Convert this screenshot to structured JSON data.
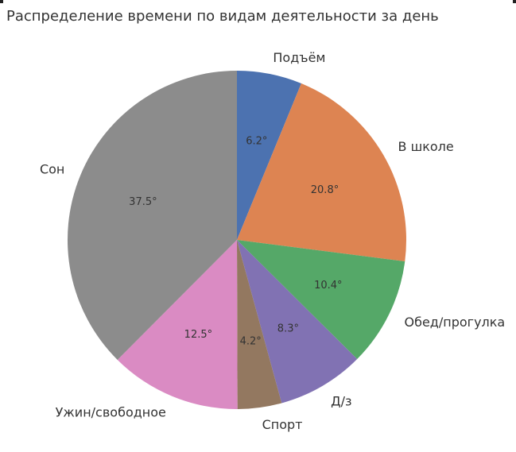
{
  "chart_data": {
    "type": "pie",
    "title": "Распределение времени по видам деятельности за день",
    "slices": [
      {
        "label": "Подъём",
        "value": 6.2,
        "value_label": "6.2°",
        "color": "#4c72b0"
      },
      {
        "label": "В школе",
        "value": 20.8,
        "value_label": "20.8°",
        "color": "#dd8452"
      },
      {
        "label": "Обед/прогулка",
        "value": 10.4,
        "value_label": "10.4°",
        "color": "#55a868"
      },
      {
        "label": "Д/з",
        "value": 8.3,
        "value_label": "8.3°",
        "color": "#8172b3"
      },
      {
        "label": "Спорт",
        "value": 4.2,
        "value_label": "4.2°",
        "color": "#937860"
      },
      {
        "label": "Ужин/свободное",
        "value": 12.5,
        "value_label": "12.5°",
        "color": "#da8bc3"
      },
      {
        "label": "Сон",
        "value": 37.5,
        "value_label": "37.5°",
        "color": "#8c8c8c"
      }
    ],
    "start_angle": "top",
    "direction": "clockwise",
    "legend": "none"
  }
}
